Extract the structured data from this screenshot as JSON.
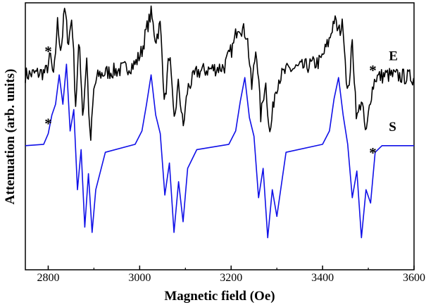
{
  "chart_data": {
    "type": "line",
    "xlabel": "Magnetic field (Oe)",
    "ylabel": "Attenuation (arb. units)",
    "xlim": [
      2750,
      3600
    ],
    "ylim": [
      0,
      1
    ],
    "x_ticks": [
      2800,
      3000,
      3200,
      3400,
      3600
    ],
    "y_ticks_shown": false,
    "grid": false,
    "colors": {
      "E": "#000000",
      "S": "#1010e8"
    },
    "series": [
      {
        "name": "E",
        "label": "E",
        "color": "#000000",
        "baseline": 0.73,
        "noise": 0.03,
        "x": [
          2750,
          2795,
          2805,
          2812,
          2820,
          2828,
          2836,
          2844,
          2852,
          2860,
          2868,
          2876,
          2884,
          2892,
          2900,
          2910,
          2930,
          2960,
          2990,
          3005,
          3015,
          3025,
          3035,
          3045,
          3055,
          3065,
          3075,
          3085,
          3095,
          3105,
          3125,
          3150,
          3185,
          3205,
          3215,
          3225,
          3235,
          3245,
          3255,
          3265,
          3275,
          3285,
          3295,
          3305,
          3325,
          3360,
          3395,
          3415,
          3425,
          3435,
          3445,
          3455,
          3465,
          3475,
          3485,
          3495,
          3505,
          3515,
          3540,
          3600
        ],
        "y": [
          0.73,
          0.74,
          0.8,
          0.71,
          0.93,
          0.82,
          0.98,
          0.85,
          0.95,
          0.62,
          0.86,
          0.57,
          0.8,
          0.46,
          0.68,
          0.73,
          0.74,
          0.75,
          0.77,
          0.82,
          0.9,
          0.96,
          0.86,
          0.92,
          0.62,
          0.82,
          0.55,
          0.7,
          0.53,
          0.68,
          0.74,
          0.75,
          0.76,
          0.84,
          0.92,
          0.9,
          0.88,
          0.68,
          0.84,
          0.57,
          0.71,
          0.5,
          0.66,
          0.72,
          0.75,
          0.76,
          0.78,
          0.86,
          0.94,
          0.89,
          0.92,
          0.64,
          0.85,
          0.56,
          0.64,
          0.5,
          0.65,
          0.72,
          0.73,
          0.72
        ]
      },
      {
        "name": "S",
        "label": "S",
        "color": "#1010e8",
        "baseline": 0.465,
        "x": [
          2750,
          2790,
          2800,
          2808,
          2816,
          2824,
          2832,
          2840,
          2848,
          2856,
          2864,
          2872,
          2880,
          2888,
          2896,
          2904,
          2925,
          2990,
          3005,
          3015,
          3025,
          3035,
          3045,
          3055,
          3065,
          3075,
          3085,
          3095,
          3105,
          3125,
          3195,
          3210,
          3220,
          3230,
          3240,
          3250,
          3260,
          3270,
          3280,
          3290,
          3300,
          3320,
          3400,
          3415,
          3425,
          3435,
          3445,
          3455,
          3465,
          3475,
          3485,
          3495,
          3505,
          3515,
          3530,
          3560,
          3600
        ],
        "y": [
          0.465,
          0.47,
          0.51,
          0.58,
          0.62,
          0.73,
          0.62,
          0.77,
          0.52,
          0.6,
          0.3,
          0.45,
          0.16,
          0.36,
          0.14,
          0.3,
          0.44,
          0.47,
          0.52,
          0.62,
          0.73,
          0.58,
          0.51,
          0.28,
          0.4,
          0.14,
          0.33,
          0.18,
          0.38,
          0.45,
          0.47,
          0.52,
          0.63,
          0.72,
          0.57,
          0.5,
          0.27,
          0.38,
          0.12,
          0.3,
          0.2,
          0.44,
          0.47,
          0.52,
          0.64,
          0.72,
          0.58,
          0.47,
          0.27,
          0.37,
          0.12,
          0.3,
          0.25,
          0.44,
          0.465,
          0.465,
          0.465
        ]
      }
    ],
    "annotations": [
      {
        "text": "*",
        "x": 2800,
        "y": 0.82
      },
      {
        "text": "*",
        "x": 2800,
        "y": 0.55
      },
      {
        "text": "*",
        "x": 3510,
        "y": 0.75
      },
      {
        "text": "*",
        "x": 3510,
        "y": 0.44
      }
    ]
  }
}
